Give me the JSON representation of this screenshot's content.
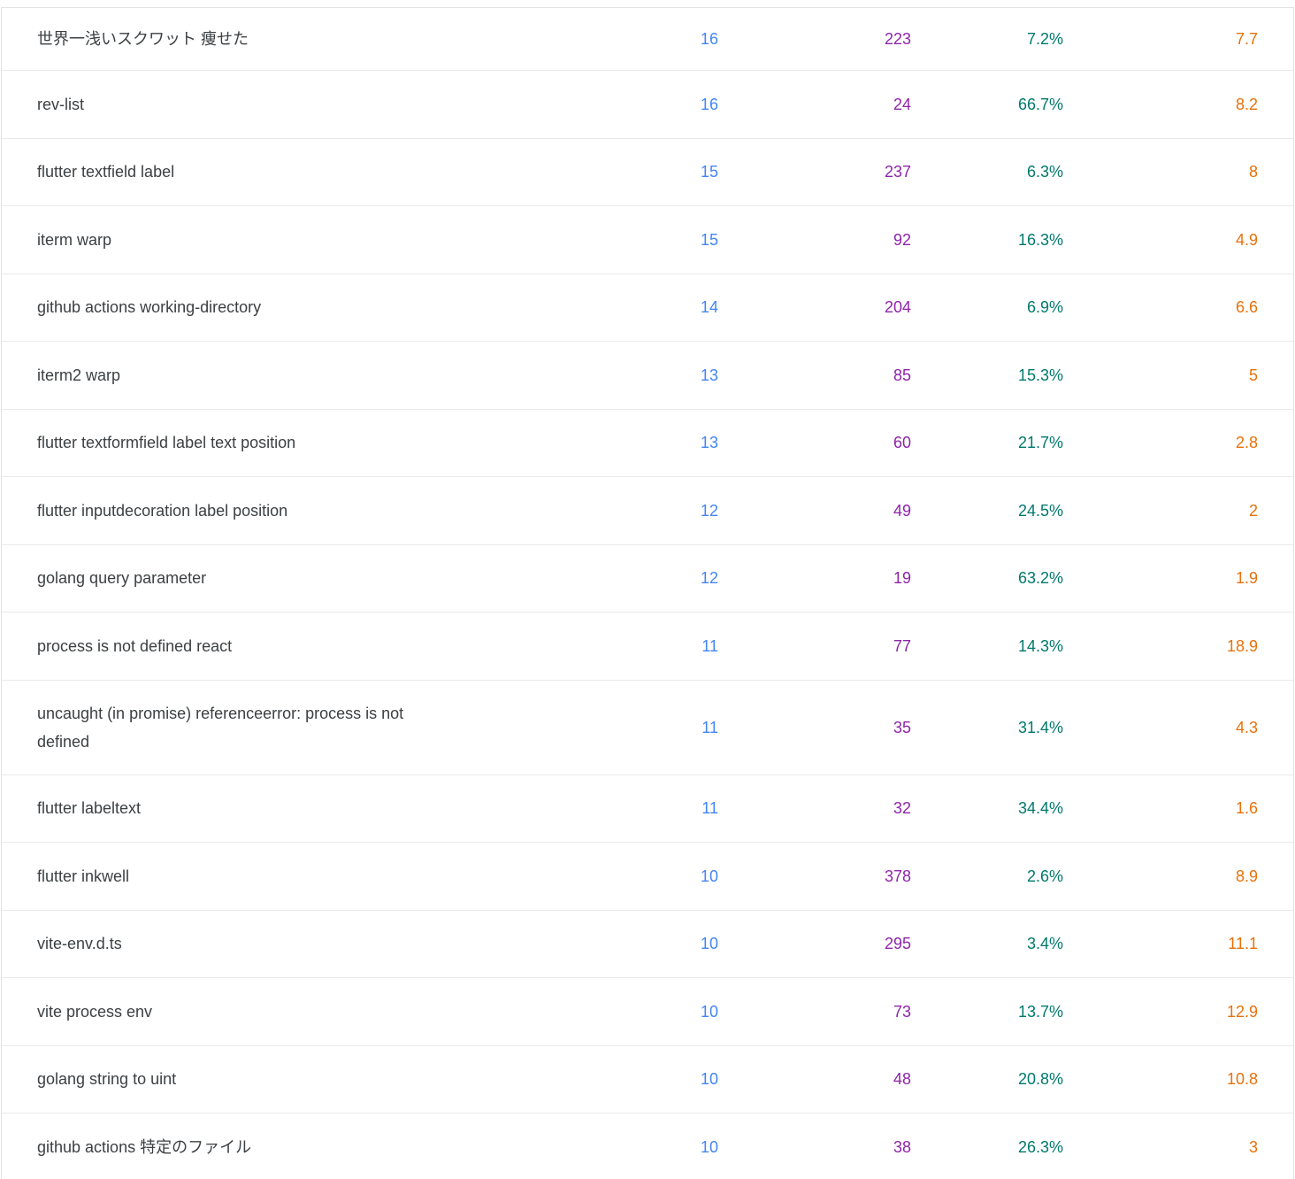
{
  "colors": {
    "clicks": "#4285f4",
    "impressions": "#8e24aa",
    "ctr": "#00796b",
    "position": "#e8710a",
    "query_text": "#3c4043",
    "row_divider": "#e8eaed",
    "card_border": "#e2e5e8"
  },
  "table": {
    "rows": [
      {
        "query": "世界一浅いスクワット 痩せた",
        "clicks": "16",
        "impressions": "223",
        "ctr": "7.2%",
        "position": "7.7"
      },
      {
        "query": "rev-list",
        "clicks": "16",
        "impressions": "24",
        "ctr": "66.7%",
        "position": "8.2"
      },
      {
        "query": "flutter textfield label",
        "clicks": "15",
        "impressions": "237",
        "ctr": "6.3%",
        "position": "8"
      },
      {
        "query": "iterm warp",
        "clicks": "15",
        "impressions": "92",
        "ctr": "16.3%",
        "position": "4.9"
      },
      {
        "query": "github actions working-directory",
        "clicks": "14",
        "impressions": "204",
        "ctr": "6.9%",
        "position": "6.6"
      },
      {
        "query": "iterm2 warp",
        "clicks": "13",
        "impressions": "85",
        "ctr": "15.3%",
        "position": "5"
      },
      {
        "query": "flutter textformfield label text position",
        "clicks": "13",
        "impressions": "60",
        "ctr": "21.7%",
        "position": "2.8"
      },
      {
        "query": "flutter inputdecoration label position",
        "clicks": "12",
        "impressions": "49",
        "ctr": "24.5%",
        "position": "2"
      },
      {
        "query": "golang query parameter",
        "clicks": "12",
        "impressions": "19",
        "ctr": "63.2%",
        "position": "1.9"
      },
      {
        "query": "process is not defined react",
        "clicks": "11",
        "impressions": "77",
        "ctr": "14.3%",
        "position": "18.9"
      },
      {
        "query": "uncaught (in promise) referenceerror: process is not defined",
        "clicks": "11",
        "impressions": "35",
        "ctr": "31.4%",
        "position": "4.3"
      },
      {
        "query": "flutter labeltext",
        "clicks": "11",
        "impressions": "32",
        "ctr": "34.4%",
        "position": "1.6"
      },
      {
        "query": "flutter inkwell",
        "clicks": "10",
        "impressions": "378",
        "ctr": "2.6%",
        "position": "8.9"
      },
      {
        "query": "vite-env.d.ts",
        "clicks": "10",
        "impressions": "295",
        "ctr": "3.4%",
        "position": "11.1"
      },
      {
        "query": "vite process env",
        "clicks": "10",
        "impressions": "73",
        "ctr": "13.7%",
        "position": "12.9"
      },
      {
        "query": "golang string to uint",
        "clicks": "10",
        "impressions": "48",
        "ctr": "20.8%",
        "position": "10.8"
      },
      {
        "query": "github actions 特定のファイル",
        "clicks": "10",
        "impressions": "38",
        "ctr": "26.3%",
        "position": "3"
      }
    ]
  }
}
